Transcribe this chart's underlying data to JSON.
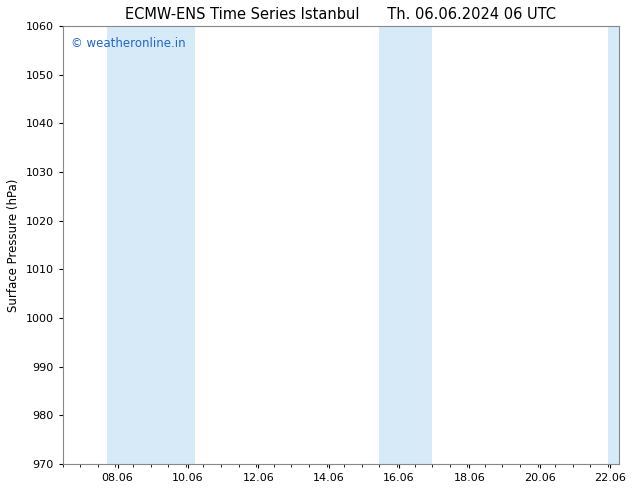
{
  "title_left": "ECMW-ENS Time Series Istanbul",
  "title_right": "Th. 06.06.2024 06 UTC",
  "ylabel": "Surface Pressure (hPa)",
  "ylim": [
    970,
    1060
  ],
  "yticks": [
    970,
    980,
    990,
    1000,
    1010,
    1020,
    1030,
    1040,
    1050,
    1060
  ],
  "xlim_start": 6.5,
  "xlim_end": 22.3,
  "xticks": [
    8.06,
    10.06,
    12.06,
    14.06,
    16.06,
    18.06,
    20.06,
    22.06
  ],
  "xticklabels": [
    "08.06",
    "10.06",
    "12.06",
    "14.06",
    "16.06",
    "18.06",
    "20.06",
    "22.06"
  ],
  "shaded_bands": [
    {
      "x_start": 7.75,
      "x_end": 9.5
    },
    {
      "x_start": 9.5,
      "x_end": 10.25
    },
    {
      "x_start": 15.5,
      "x_end": 16.06
    },
    {
      "x_start": 16.06,
      "x_end": 17.0
    },
    {
      "x_start": 22.0,
      "x_end": 22.3
    }
  ],
  "band_color": "#d6eaf8",
  "bg_color": "#ffffff",
  "plot_bg_color": "#ffffff",
  "border_color": "#888888",
  "watermark_text": "© weatheronline.in",
  "watermark_color": "#2266cc",
  "watermark_fontsize": 8.5,
  "title_fontsize": 10.5,
  "ylabel_fontsize": 8.5,
  "tick_fontsize": 8
}
